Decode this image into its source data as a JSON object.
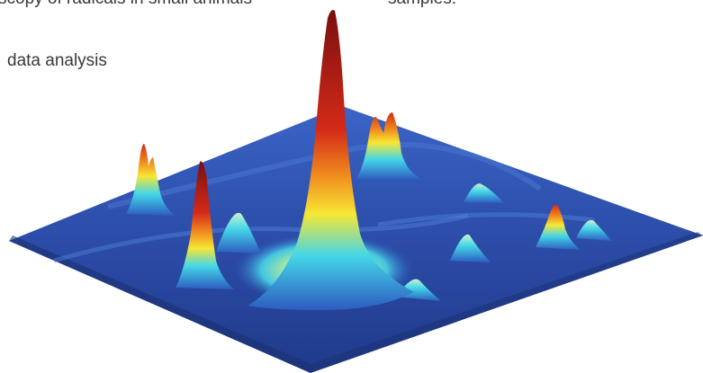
{
  "text": {
    "line1": "scopy of radicals in small animals",
    "line2": "data analysis",
    "line3": "samples."
  },
  "figure": {
    "description_icon": "3d-surface-plot-icon",
    "colors": {
      "base": "#2d4fb0",
      "base_dark": "#1c3580",
      "cyan": "#44d6e8",
      "yellow": "#f7e734",
      "orange": "#f08a1e",
      "red": "#d42a18",
      "dark_red": "#7a0f0f"
    }
  }
}
